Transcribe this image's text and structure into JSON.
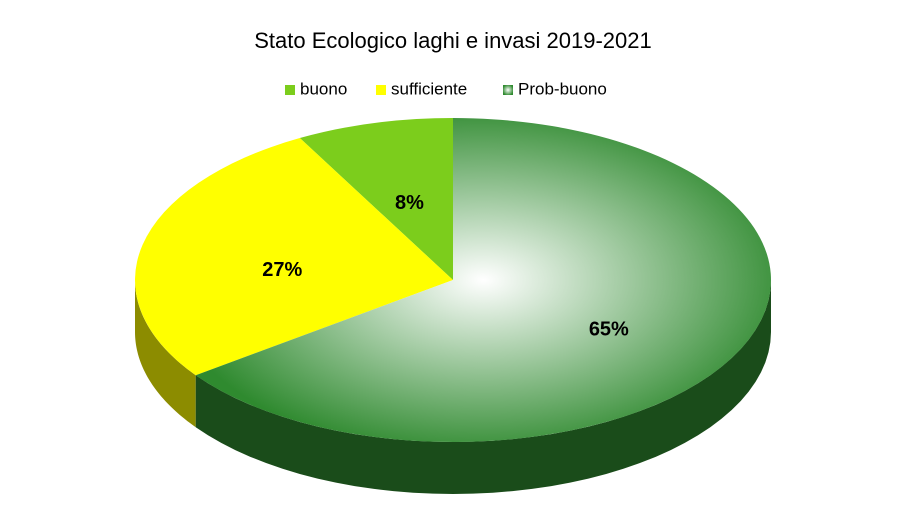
{
  "chart_data": {
    "type": "pie",
    "title": "Stato Ecologico laghi e invasi 2019-2021",
    "categories": [
      "buono",
      "sufficiente",
      "Prob-buono"
    ],
    "values": [
      8,
      27,
      65
    ],
    "value_labels": [
      "8%",
      "27%",
      "65%"
    ],
    "colors": [
      "#7ccd1c",
      "#ffff00",
      "#2f8a2f"
    ],
    "legend": "top"
  }
}
